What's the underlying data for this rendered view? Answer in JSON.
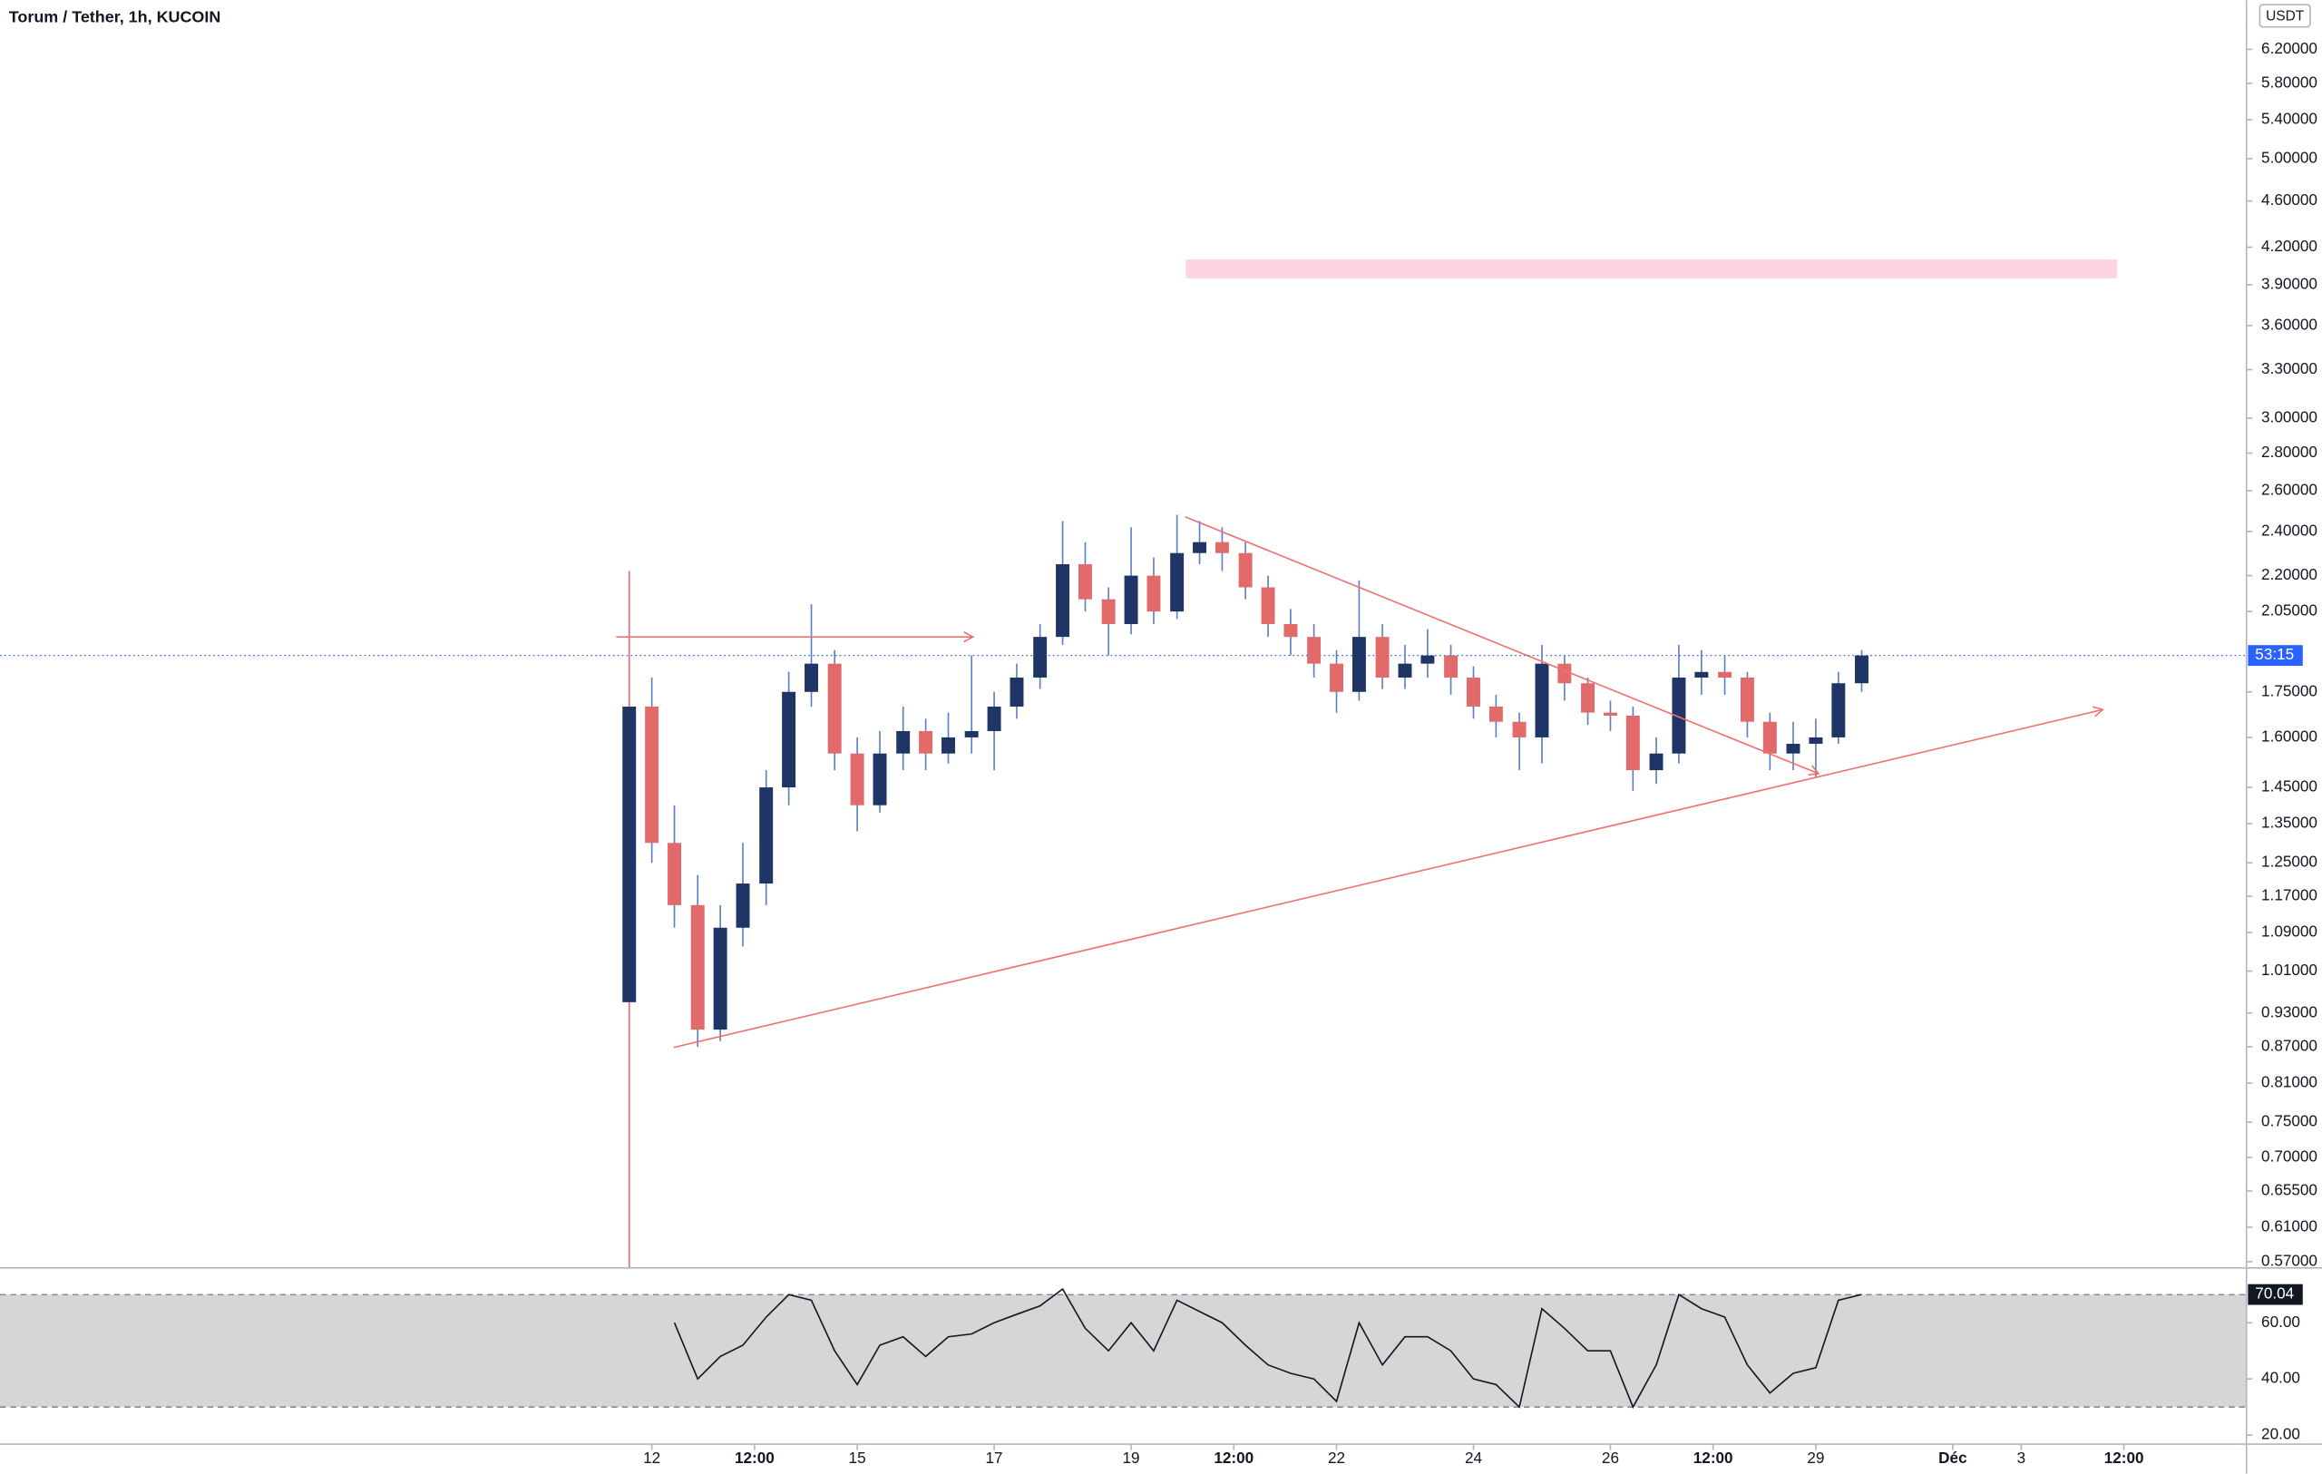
{
  "chart_data": {
    "type": "candlestick",
    "title": "Torum / Tether, 1h, KUCOIN",
    "y_unit": "USDT",
    "x": [
      11.67,
      12,
      12.33,
      12.67,
      13,
      13.33,
      13.67,
      14,
      14.33,
      14.67,
      15,
      15.33,
      15.67,
      16,
      16.33,
      16.67,
      17,
      17.33,
      17.67,
      18,
      18.33,
      18.67,
      19,
      19.33,
      19.67,
      20,
      20.33,
      20.67,
      21,
      21.33,
      21.67,
      22,
      22.33,
      22.67,
      23,
      23.33,
      23.67,
      24,
      24.33,
      24.67,
      25,
      25.33,
      25.67,
      26,
      26.33,
      26.67,
      27,
      27.33,
      27.67,
      28,
      28.33,
      28.67,
      29,
      29.33,
      29.67
    ],
    "open": [
      0.95,
      1.7,
      1.3,
      1.15,
      0.9,
      1.1,
      1.2,
      1.45,
      1.75,
      1.85,
      1.55,
      1.4,
      1.55,
      1.62,
      1.55,
      1.6,
      1.62,
      1.7,
      1.8,
      1.95,
      2.25,
      2.1,
      2.0,
      2.2,
      2.05,
      2.3,
      2.35,
      2.3,
      2.15,
      2.0,
      1.95,
      1.85,
      1.75,
      1.95,
      1.8,
      1.85,
      1.88,
      1.8,
      1.7,
      1.65,
      1.6,
      1.85,
      1.78,
      1.68,
      1.67,
      1.5,
      1.55,
      1.8,
      1.82,
      1.8,
      1.65,
      1.55,
      1.58,
      1.6,
      1.78
    ],
    "high": [
      2.22,
      1.8,
      1.4,
      1.22,
      1.15,
      1.3,
      1.5,
      1.82,
      2.08,
      1.9,
      1.6,
      1.62,
      1.7,
      1.66,
      1.68,
      1.88,
      1.75,
      1.85,
      2.0,
      2.45,
      2.35,
      2.15,
      2.42,
      2.28,
      2.48,
      2.45,
      2.42,
      2.35,
      2.2,
      2.06,
      2.0,
      1.9,
      2.18,
      2.0,
      1.92,
      1.98,
      1.92,
      1.84,
      1.74,
      1.68,
      1.92,
      1.88,
      1.8,
      1.72,
      1.7,
      1.6,
      1.92,
      1.9,
      1.88,
      1.82,
      1.68,
      1.65,
      1.66,
      1.82,
      1.9
    ],
    "low": [
      0.55,
      1.25,
      1.1,
      0.87,
      0.88,
      1.06,
      1.15,
      1.4,
      1.7,
      1.5,
      1.33,
      1.38,
      1.5,
      1.5,
      1.52,
      1.55,
      1.5,
      1.66,
      1.76,
      1.92,
      2.05,
      1.88,
      1.96,
      2.0,
      2.02,
      2.25,
      2.22,
      2.1,
      1.95,
      1.88,
      1.8,
      1.68,
      1.72,
      1.76,
      1.76,
      1.8,
      1.74,
      1.66,
      1.6,
      1.5,
      1.52,
      1.72,
      1.64,
      1.62,
      1.44,
      1.46,
      1.52,
      1.74,
      1.74,
      1.6,
      1.5,
      1.5,
      1.48,
      1.58,
      1.75
    ],
    "close": [
      1.7,
      1.3,
      1.15,
      0.9,
      1.1,
      1.2,
      1.45,
      1.75,
      1.85,
      1.55,
      1.4,
      1.55,
      1.62,
      1.55,
      1.6,
      1.62,
      1.7,
      1.8,
      1.95,
      2.25,
      2.1,
      2.0,
      2.2,
      2.05,
      2.3,
      2.35,
      2.3,
      2.15,
      2.0,
      1.95,
      1.85,
      1.75,
      1.95,
      1.8,
      1.85,
      1.88,
      1.8,
      1.7,
      1.65,
      1.6,
      1.85,
      1.78,
      1.68,
      1.67,
      1.5,
      1.55,
      1.8,
      1.82,
      1.8,
      1.65,
      1.55,
      1.58,
      1.6,
      1.78,
      1.88
    ],
    "up_color": "#1f3566",
    "down_color": "#e36a6a",
    "wick_color": "#5b7fc0",
    "log_scale": true,
    "xlim": [
      2.48,
      35.29
    ],
    "xticks": [
      12,
      {
        "value": 13.5,
        "label": "12:00"
      },
      15,
      17,
      19,
      {
        "value": 20.5,
        "label": "12:00"
      },
      22,
      24,
      26,
      {
        "value": 27.5,
        "label": "12:00"
      },
      29,
      {
        "value": 31,
        "label": "Déc"
      },
      {
        "value": 32,
        "label": "3"
      },
      {
        "value": 33.5,
        "label": "12:00"
      }
    ],
    "ylim": [
      0.563,
      6.83
    ],
    "yticks": [
      {
        "value": 6.2,
        "label": "6.20000"
      },
      {
        "value": 5.8,
        "label": "5.80000"
      },
      {
        "value": 5.4,
        "label": "5.40000"
      },
      {
        "value": 5.0,
        "label": "5.00000"
      },
      {
        "value": 4.6,
        "label": "4.60000"
      },
      {
        "value": 4.2,
        "label": "4.20000"
      },
      {
        "value": 3.9,
        "label": "3.90000"
      },
      {
        "value": 3.6,
        "label": "3.60000"
      },
      {
        "value": 3.3,
        "label": "3.30000"
      },
      {
        "value": 3.0,
        "label": "3.00000"
      },
      {
        "value": 2.8,
        "label": "2.80000"
      },
      {
        "value": 2.6,
        "label": "2.60000"
      },
      {
        "value": 2.4,
        "label": "2.40000"
      },
      {
        "value": 2.2,
        "label": "2.20000"
      },
      {
        "value": 2.05,
        "label": "2.05000"
      },
      {
        "value": 1.75,
        "label": "1.75000"
      },
      {
        "value": 1.6,
        "label": "1.60000"
      },
      {
        "value": 1.45,
        "label": "1.45000"
      },
      {
        "value": 1.35,
        "label": "1.35000"
      },
      {
        "value": 1.25,
        "label": "1.25000"
      },
      {
        "value": 1.17,
        "label": "1.17000"
      },
      {
        "value": 1.09,
        "label": "1.09000"
      },
      {
        "value": 1.01,
        "label": "1.01000"
      },
      {
        "value": 0.93,
        "label": "0.93000"
      },
      {
        "value": 0.87,
        "label": "0.87000"
      },
      {
        "value": 0.81,
        "label": "0.81000"
      },
      {
        "value": 0.75,
        "label": "0.75000"
      },
      {
        "value": 0.7,
        "label": "0.70000"
      },
      {
        "value": 0.655,
        "label": "0.65500"
      },
      {
        "value": 0.61,
        "label": "0.61000"
      },
      {
        "value": 0.57,
        "label": "0.57000"
      }
    ],
    "last_price": 1.88,
    "countdown": "53:15",
    "last_price_color": "#2962ff",
    "zone": {
      "x": [
        19.8,
        33.4
      ],
      "y": [
        3.95,
        4.1
      ],
      "color": "#fcd5e0"
    },
    "drawings": [
      {
        "x": [
          11.48,
          16.69
        ],
        "y": [
          1.95,
          1.95
        ],
        "color": "#f07070"
      },
      {
        "x": [
          19.79,
          29.04
        ],
        "y": [
          2.47,
          1.49
        ],
        "color": "#f07070"
      },
      {
        "x": [
          12.32,
          33.19
        ],
        "y": [
          0.869,
          1.69
        ],
        "color": "#f07070"
      }
    ],
    "rsi": {
      "values": [
        null,
        null,
        60,
        40,
        48,
        52,
        62,
        70,
        68,
        50,
        38,
        52,
        55,
        48,
        55,
        56,
        60,
        63,
        66,
        72,
        58,
        50,
        60,
        50,
        68,
        64,
        60,
        52,
        45,
        42,
        40,
        32,
        60,
        45,
        55,
        55,
        50,
        40,
        38,
        30,
        65,
        58,
        50,
        50,
        30,
        45,
        70,
        65,
        62,
        45,
        35,
        42,
        44,
        68,
        70.04
      ],
      "ylim": [
        16.8,
        79.5
      ],
      "yticks": [
        {
          "value": 60,
          "label": "60.00"
        },
        {
          "value": 40,
          "label": "40.00"
        },
        {
          "value": 20,
          "label": "20.00"
        }
      ],
      "band": [
        30,
        70
      ],
      "band_color": "#d6d6d6",
      "color": "#131722"
    }
  }
}
